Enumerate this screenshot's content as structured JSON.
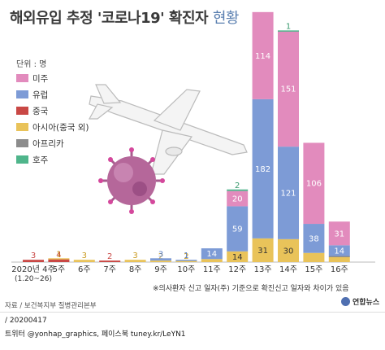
{
  "header": {
    "title": "해외유입 추정 '코로나19' 확진자",
    "subtitle": "현황"
  },
  "unit": "단위 : 명",
  "colors": {
    "americas": "#e28bbd",
    "europe": "#7d9bd6",
    "china": "#c94845",
    "asia": "#e9c35a",
    "africa": "#8c8c8c",
    "oceania": "#4fb58b"
  },
  "chart_data": {
    "type": "bar",
    "stacked": true,
    "categories": [
      "2020년 4주\n(1.20~26)",
      "5주",
      "6주",
      "7주",
      "8주",
      "9주",
      "10주",
      "11주",
      "12주",
      "13주",
      "14주",
      "15주",
      "16주"
    ],
    "series": [
      {
        "name": "중국",
        "key": "china",
        "values": [
          3,
          4,
          0,
          2,
          0,
          0,
          0,
          0,
          0,
          0,
          0,
          0,
          0
        ]
      },
      {
        "name": "아시아(중국 외)",
        "key": "asia",
        "values": [
          0,
          1,
          3,
          0,
          3,
          2,
          2,
          4,
          14,
          31,
          30,
          12,
          7
        ]
      },
      {
        "name": "아프리카",
        "key": "africa",
        "values": [
          0,
          0,
          0,
          0,
          0,
          0,
          0,
          0,
          0,
          0,
          0,
          0,
          1
        ]
      },
      {
        "name": "유럽",
        "key": "europe",
        "values": [
          0,
          0,
          0,
          0,
          0,
          3,
          1,
          14,
          59,
          182,
          121,
          38,
          14
        ]
      },
      {
        "name": "미주",
        "key": "americas",
        "values": [
          0,
          0,
          0,
          0,
          0,
          0,
          0,
          0,
          20,
          114,
          151,
          106,
          31
        ]
      },
      {
        "name": "호주",
        "key": "oceania",
        "values": [
          0,
          0,
          0,
          0,
          0,
          0,
          0,
          0,
          2,
          0,
          1,
          0,
          0
        ]
      }
    ],
    "legend": [
      "미주",
      "유럽",
      "중국",
      "아시아(중국 외)",
      "아프리카",
      "호주"
    ],
    "ylim": [
      0,
      330
    ]
  },
  "note": "※의사환자 신고 일자(주) 기준으로 확진신고 일자와 차이가 있음",
  "source": "자료 / 보건복지부 질병관리본부",
  "date": "/ 20200417",
  "credit": "트위터 @yonhap_graphics, 페이스북 tuney.kr/LeYN1",
  "logo": "연합뉴스"
}
